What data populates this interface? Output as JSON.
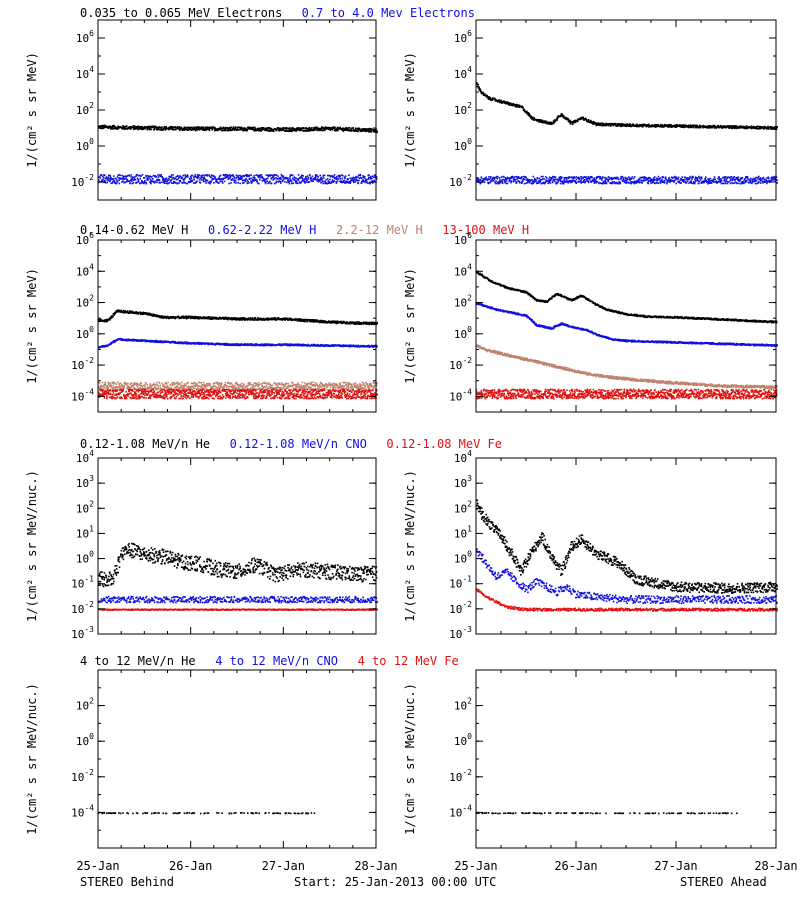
{
  "colors": {
    "black": "#000000",
    "blue": "#1010e0",
    "tan": "#c0826c",
    "red": "#e01010"
  },
  "x_ticks": [
    "25-Jan",
    "26-Jan",
    "27-Jan",
    "28-Jan"
  ],
  "footer": {
    "left": "STEREO Behind",
    "center": "Start: 25-Jan-2013 00:00 UTC",
    "right": "STEREO Ahead"
  },
  "chart_data": [
    {
      "type": "scatter",
      "id": "electrons",
      "legend": [
        {
          "text": "0.035 to 0.065 MeV Electrons",
          "color": "black"
        },
        {
          "text": "0.7 to 4.0 Mev Electrons",
          "color": "blue"
        }
      ],
      "ylabel": "1/(cm² s sr MeV)",
      "yscale": "log",
      "ylim_exp": [
        -3,
        7
      ],
      "yticks": [
        {
          "exp": -2
        },
        {
          "exp": 0
        },
        {
          "exp": 2
        },
        {
          "exp": 4
        },
        {
          "exp": 6
        }
      ],
      "xlim_days": [
        0,
        3
      ],
      "panels": [
        {
          "side": "behind",
          "series": [
            {
              "color": "black",
              "x": [
                0,
                0.5,
                1,
                1.5,
                2,
                2.5,
                3
              ],
              "log10y": [
                1.1,
                1.05,
                1.0,
                1.0,
                0.95,
                1.0,
                0.9
              ],
              "noise": 0.1,
              "dens": 3
            },
            {
              "color": "blue",
              "x": [
                0,
                1,
                2,
                3
              ],
              "log10y": [
                -1.8,
                -1.8,
                -1.8,
                -1.8
              ],
              "noise": 0.25,
              "dens": 3
            }
          ]
        },
        {
          "side": "ahead",
          "series": [
            {
              "color": "black",
              "x": [
                0,
                0.05,
                0.12,
                0.25,
                0.45,
                0.55,
                0.65,
                0.75,
                0.85,
                0.95,
                1.05,
                1.2,
                1.5,
                2,
                2.5,
                3
              ],
              "log10y": [
                3.5,
                3.0,
                2.7,
                2.5,
                2.2,
                1.6,
                1.4,
                1.3,
                1.8,
                1.3,
                1.6,
                1.25,
                1.2,
                1.15,
                1.1,
                1.05
              ],
              "noise": 0.07,
              "dens": 3
            },
            {
              "color": "blue",
              "x": [
                0,
                1,
                2,
                3
              ],
              "log10y": [
                -1.85,
                -1.85,
                -1.85,
                -1.85
              ],
              "noise": 0.2,
              "dens": 3
            }
          ]
        }
      ]
    },
    {
      "type": "scatter",
      "id": "protons",
      "legend": [
        {
          "text": "0.14-0.62 MeV H",
          "color": "black"
        },
        {
          "text": "0.62-2.22 MeV H",
          "color": "blue"
        },
        {
          "text": "2.2-12 MeV H",
          "color": "tan"
        },
        {
          "text": "13-100 MeV H",
          "color": "red"
        }
      ],
      "ylabel": "1/(cm² s sr MeV)",
      "yscale": "log",
      "ylim_exp": [
        -5,
        6
      ],
      "yticks": [
        {
          "exp": -4
        },
        {
          "exp": -2
        },
        {
          "exp": 0
        },
        {
          "exp": 2
        },
        {
          "exp": 4
        },
        {
          "exp": 6
        }
      ],
      "xlim_days": [
        0,
        3
      ],
      "panels": [
        {
          "side": "behind",
          "series": [
            {
              "color": "black",
              "x": [
                0,
                0.1,
                0.2,
                0.5,
                0.7,
                1,
                1.5,
                2,
                2.5,
                3
              ],
              "log10y": [
                0.9,
                0.9,
                1.5,
                1.35,
                1.1,
                1.1,
                1.0,
                1.0,
                0.8,
                0.7
              ],
              "noise": 0.07,
              "dens": 3
            },
            {
              "color": "blue",
              "x": [
                0,
                0.1,
                0.2,
                0.5,
                1,
                1.5,
                2,
                2.5,
                3
              ],
              "log10y": [
                -0.8,
                -0.7,
                -0.3,
                -0.4,
                -0.55,
                -0.65,
                -0.65,
                -0.7,
                -0.75
              ],
              "noise": 0.05,
              "dens": 3
            },
            {
              "color": "tan",
              "x": [
                0,
                1,
                2,
                3
              ],
              "log10y": [
                -3.3,
                -3.3,
                -3.3,
                -3.3
              ],
              "noise": 0.25,
              "dens": 3
            },
            {
              "color": "red",
              "x": [
                0,
                1,
                2,
                3
              ],
              "log10y": [
                -3.8,
                -3.8,
                -3.8,
                -3.8
              ],
              "noise": 0.3,
              "dens": 4
            }
          ]
        },
        {
          "side": "ahead",
          "series": [
            {
              "color": "black",
              "x": [
                0,
                0.05,
                0.15,
                0.3,
                0.5,
                0.6,
                0.7,
                0.8,
                0.95,
                1.05,
                1.2,
                1.3,
                1.5,
                1.7,
                2,
                2.5,
                3
              ],
              "log10y": [
                4.0,
                3.8,
                3.4,
                3.0,
                2.7,
                2.2,
                2.1,
                2.6,
                2.2,
                2.5,
                1.9,
                1.6,
                1.3,
                1.15,
                1.1,
                0.95,
                0.8
              ],
              "noise": 0.05,
              "dens": 3
            },
            {
              "color": "blue",
              "x": [
                0,
                0.05,
                0.2,
                0.35,
                0.5,
                0.6,
                0.75,
                0.85,
                1.0,
                1.1,
                1.2,
                1.35,
                1.5,
                2,
                2.5,
                3
              ],
              "log10y": [
                2.0,
                1.9,
                1.6,
                1.4,
                1.2,
                0.6,
                0.4,
                0.7,
                0.4,
                0.3,
                0.0,
                -0.3,
                -0.4,
                -0.5,
                -0.6,
                -0.7
              ],
              "noise": 0.05,
              "dens": 3
            },
            {
              "color": "tan",
              "x": [
                0,
                0.1,
                0.3,
                0.5,
                0.7,
                0.9,
                1.1,
                1.3,
                1.6,
                2,
                2.5,
                3
              ],
              "log10y": [
                -0.7,
                -1.0,
                -1.3,
                -1.6,
                -1.9,
                -2.2,
                -2.5,
                -2.7,
                -2.9,
                -3.1,
                -3.3,
                -3.35
              ],
              "noise": 0.08,
              "dens": 3
            },
            {
              "color": "red",
              "x": [
                0,
                1,
                2,
                3
              ],
              "log10y": [
                -3.8,
                -3.8,
                -3.8,
                -3.8
              ],
              "noise": 0.3,
              "dens": 4
            }
          ]
        }
      ]
    },
    {
      "type": "scatter",
      "id": "heavy-low",
      "legend": [
        {
          "text": "0.12-1.08 MeV/n He",
          "color": "black"
        },
        {
          "text": "0.12-1.08 MeV/n CNO",
          "color": "blue"
        },
        {
          "text": "0.12-1.08 MeV Fe",
          "color": "red"
        }
      ],
      "ylabel": "1/(cm² s sr MeV/nuc.)",
      "yscale": "log",
      "ylim_exp": [
        -3,
        4
      ],
      "yticks": [
        {
          "exp": -3
        },
        {
          "exp": -2
        },
        {
          "exp": -1
        },
        {
          "exp": 0
        },
        {
          "exp": 1
        },
        {
          "exp": 2
        },
        {
          "exp": 3
        },
        {
          "exp": 4
        }
      ],
      "xlim_days": [
        0,
        3
      ],
      "panels": [
        {
          "side": "behind",
          "series": [
            {
              "color": "black",
              "x": [
                0,
                0.15,
                0.25,
                0.3,
                0.4,
                0.5,
                0.7,
                0.9,
                1.1,
                1.3,
                1.5,
                1.7,
                1.9,
                2.2,
                2.5,
                2.8,
                3
              ],
              "log10y": [
                -0.8,
                -0.8,
                0.2,
                0.4,
                0.3,
                0.2,
                0.1,
                -0.1,
                -0.2,
                -0.4,
                -0.5,
                -0.2,
                -0.6,
                -0.4,
                -0.5,
                -0.6,
                -0.55
              ],
              "noise": 0.3,
              "dens": 3
            },
            {
              "color": "blue",
              "x": [
                0,
                1,
                2,
                3
              ],
              "log10y": [
                -1.6,
                -1.6,
                -1.6,
                -1.6
              ],
              "noise": 0.12,
              "dens": 2
            },
            {
              "color": "red",
              "x": [
                0,
                1,
                2,
                3
              ],
              "log10y": [
                -2.0,
                -2.0,
                -2.0,
                -2.0
              ],
              "noise": 0.02,
              "dens": 2
            }
          ]
        },
        {
          "side": "ahead",
          "series": [
            {
              "color": "black",
              "x": [
                0,
                0.05,
                0.15,
                0.25,
                0.35,
                0.45,
                0.55,
                0.65,
                0.75,
                0.85,
                0.95,
                1.05,
                1.2,
                1.4,
                1.6,
                2,
                2.5,
                3
              ],
              "log10y": [
                2.2,
                1.8,
                1.3,
                0.9,
                0.2,
                -0.5,
                0.3,
                0.9,
                0.1,
                -0.5,
                0.5,
                0.8,
                0.2,
                -0.1,
                -0.8,
                -1.1,
                -1.15,
                -1.1
              ],
              "noise": 0.2,
              "dens": 3
            },
            {
              "color": "blue",
              "x": [
                0,
                0.1,
                0.2,
                0.3,
                0.4,
                0.5,
                0.6,
                0.8,
                0.9,
                1.0,
                1.2,
                1.5,
                2,
                3
              ],
              "log10y": [
                0.4,
                -0.2,
                -0.7,
                -0.5,
                -0.9,
                -1.2,
                -0.9,
                -1.3,
                -1.1,
                -1.4,
                -1.5,
                -1.6,
                -1.6,
                -1.6
              ],
              "noise": 0.15,
              "dens": 2
            },
            {
              "color": "red",
              "x": [
                0,
                0.1,
                0.3,
                0.5,
                1,
                2,
                3
              ],
              "log10y": [
                -1.2,
                -1.5,
                -1.9,
                -2.0,
                -2.0,
                -2.0,
                -2.0
              ],
              "noise": 0.05,
              "dens": 2
            }
          ]
        }
      ]
    },
    {
      "type": "scatter",
      "id": "heavy-high",
      "legend": [
        {
          "text": "4 to 12 MeV/n He",
          "color": "black"
        },
        {
          "text": "4 to 12 MeV/n CNO",
          "color": "blue"
        },
        {
          "text": "4 to 12 MeV Fe",
          "color": "red"
        }
      ],
      "ylabel": "1/(cm² s sr MeV/nuc.)",
      "yscale": "log",
      "ylim_exp": [
        -6,
        4
      ],
      "yticks": [
        {
          "exp": -4
        },
        {
          "exp": -2
        },
        {
          "exp": 0
        },
        {
          "exp": 2
        }
      ],
      "xlim_days": [
        0,
        3
      ],
      "panels": [
        {
          "side": "behind",
          "series": [
            {
              "color": "black",
              "x": [
                0,
                2.35
              ],
              "log10y": [
                -4.0,
                -4.0
              ],
              "noise": 0.02,
              "dens": 1
            }
          ]
        },
        {
          "side": "ahead",
          "series": [
            {
              "color": "black",
              "x": [
                0,
                2.6
              ],
              "log10y": [
                -4.0,
                -4.0
              ],
              "noise": 0.02,
              "dens": 1
            }
          ]
        }
      ]
    }
  ]
}
